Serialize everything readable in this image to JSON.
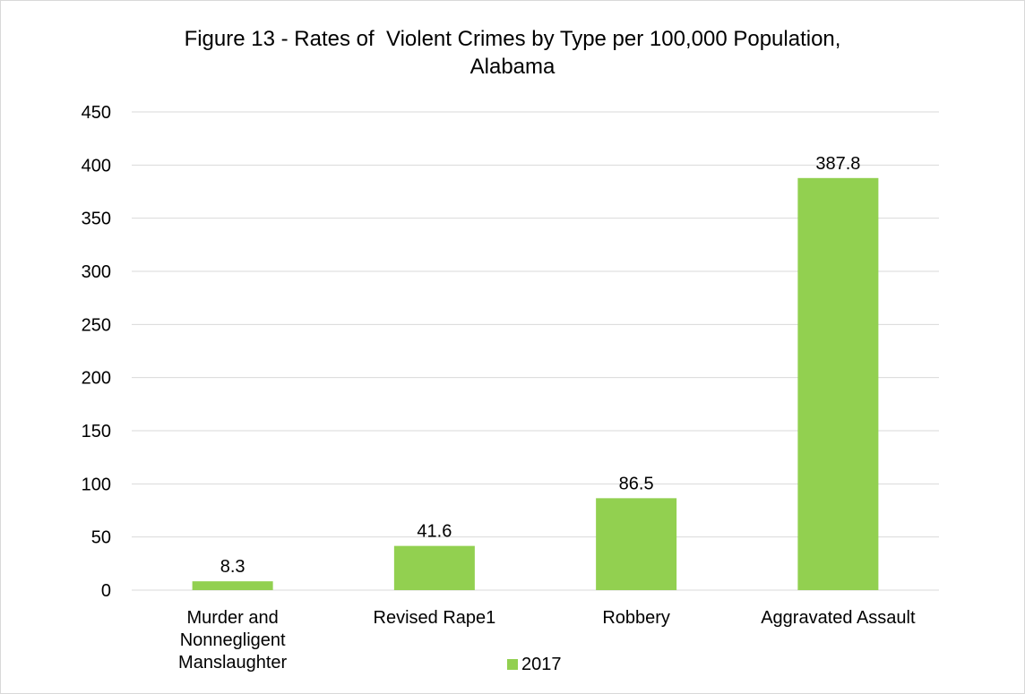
{
  "chart_data": {
    "type": "bar",
    "title": "Figure 13 - Rates of  Violent Crimes by Type per 100,000 Population, Alabama",
    "title_lines": [
      "Figure 13 - Rates of  Violent Crimes by Type per 100,000 Population,",
      "Alabama"
    ],
    "categories": [
      [
        "Murder and",
        "Nonnegligent",
        "Manslaughter"
      ],
      [
        "Revised Rape1"
      ],
      [
        "Robbery"
      ],
      [
        "Aggravated Assault"
      ]
    ],
    "series": [
      {
        "name": "2017",
        "values": [
          8.3,
          41.6,
          86.5,
          387.8
        ],
        "labels": [
          "8.3",
          "41.6",
          "86.5",
          "387.8"
        ]
      }
    ],
    "ylim": [
      0,
      450
    ],
    "yticks": [
      0,
      50,
      100,
      150,
      200,
      250,
      300,
      350,
      400,
      450
    ],
    "xlabel": "",
    "ylabel": "",
    "grid": true,
    "legend_position": "bottom",
    "colors": {
      "bar": "#92d050",
      "grid": "#d9d9d9",
      "text": "#000000"
    }
  }
}
